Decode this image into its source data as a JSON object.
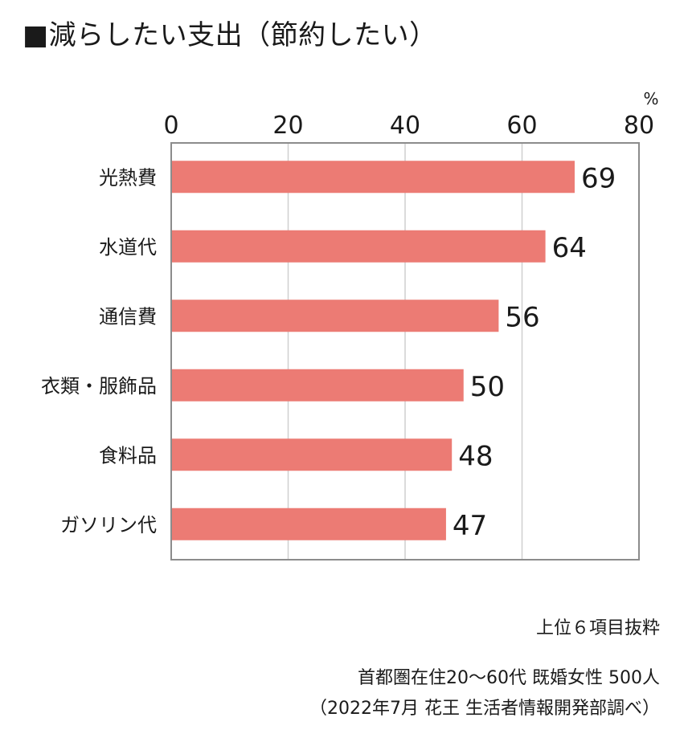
{
  "title": "■減らしたい支出（節約したい）",
  "chart_data": {
    "type": "bar",
    "orientation": "horizontal",
    "categories": [
      "光熱費",
      "水道代",
      "通信費",
      "衣類・服飾品",
      "食料品",
      "ガソリン代"
    ],
    "values": [
      69,
      64,
      56,
      50,
      48,
      47
    ],
    "value_labels": [
      "69",
      "64",
      "56",
      "50",
      "48",
      "47"
    ],
    "xlim": [
      0,
      80
    ],
    "x_ticks": [
      0,
      20,
      40,
      60,
      80
    ],
    "x_tick_labels": [
      "0",
      "20",
      "40",
      "60",
      "80"
    ],
    "unit": "%",
    "grid": true,
    "bar_color": "#ec7b74"
  },
  "notes": {
    "line1": "上位６項目抜粋",
    "line2": "首都圏在住20〜60代 既婚女性 500人",
    "line3": "（2022年7月 花王 生活者情報開発部調べ）"
  }
}
